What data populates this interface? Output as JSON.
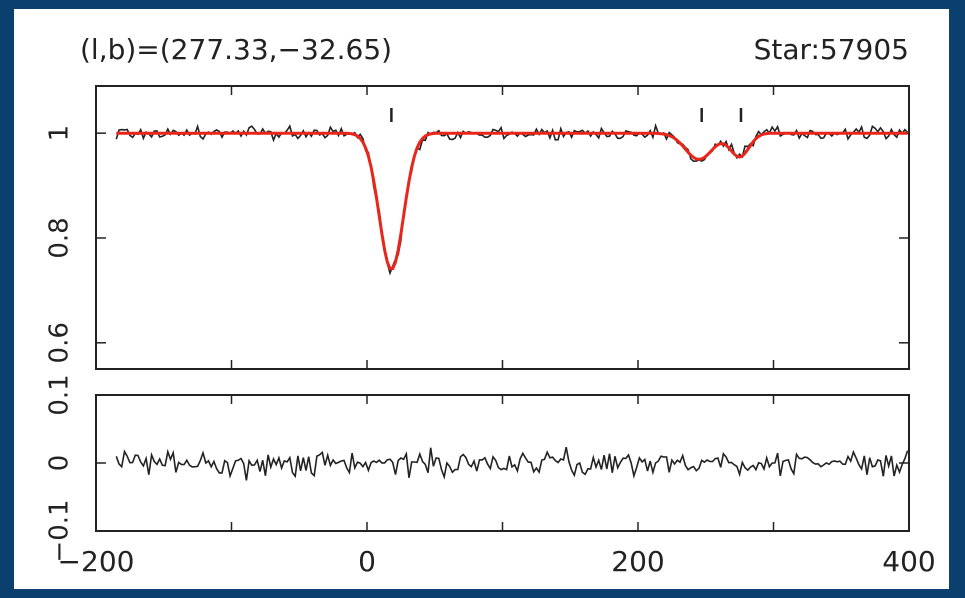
{
  "chart_data": {
    "type": "line",
    "title_left": "(l,b)=(277.33,−32.65)",
    "title_right": "Star:57905",
    "x_ticks": [
      "−200",
      "0",
      "200",
      "400"
    ],
    "xlim": [
      -200,
      400
    ],
    "panels": [
      {
        "name": "spectrum",
        "ylim": [
          0.55,
          1.09
        ],
        "y_ticks": [
          "0.6",
          "0.8",
          "1"
        ],
        "y_tick_values": [
          0.6,
          0.8,
          1.0
        ],
        "series": [
          {
            "role": "data",
            "color": "#222222"
          },
          {
            "role": "fit",
            "color": "#e8261b",
            "components": [
              {
                "center": 18,
                "depth": 0.26,
                "sigma": 9
              },
              {
                "center": 245,
                "depth": 0.05,
                "sigma": 10
              },
              {
                "center": 275,
                "depth": 0.045,
                "sigma": 7
              }
            ]
          }
        ],
        "marker_x": [
          18,
          247,
          276
        ]
      },
      {
        "name": "residuals",
        "ylim": [
          -0.1,
          0.1
        ],
        "y_ticks": [
          "−0.1",
          "0",
          "0.1"
        ],
        "y_tick_values": [
          -0.1,
          0.0,
          0.1
        ],
        "series": [
          {
            "role": "residual",
            "color": "#222222"
          }
        ]
      }
    ],
    "data_x_range": [
      -185,
      400
    ],
    "grid": false
  },
  "colors": {
    "background": "#0a3f6e",
    "plot": "#ffffff",
    "axis": "#222222",
    "fit": "#e8261b"
  }
}
